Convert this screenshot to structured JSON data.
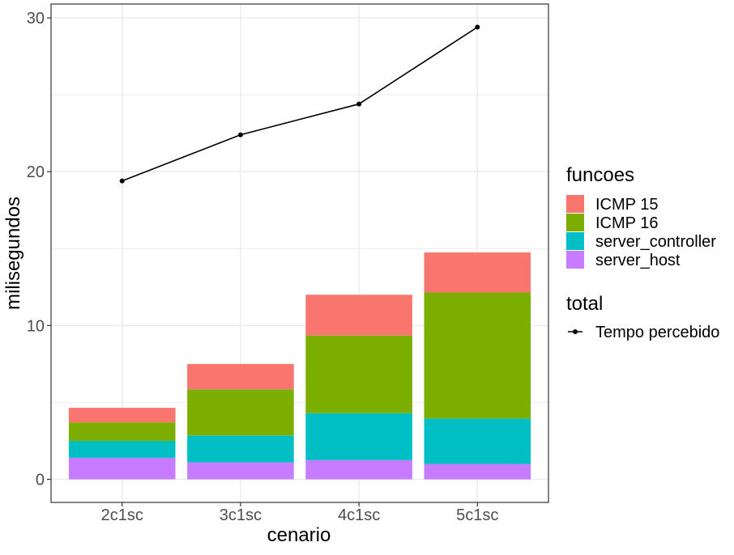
{
  "chart_data": {
    "type": "bar",
    "stacked": true,
    "categories": [
      "2c1sc",
      "3c1sc",
      "4c1sc",
      "5c1sc"
    ],
    "xlabel": "cenario",
    "ylabel": "milisegundos",
    "ylim": [
      -1.5,
      30.9
    ],
    "yticks": [
      0,
      10,
      20,
      30
    ],
    "grid": true,
    "legend_position": "right",
    "legends": [
      {
        "title": "funcoes",
        "entries": [
          "ICMP 15",
          "ICMP 16",
          "server_controller",
          "server_host"
        ]
      },
      {
        "title": "total",
        "entries": [
          "Tempo percebido"
        ]
      }
    ],
    "series": [
      {
        "name": "server_host",
        "kind": "bar",
        "color": "#C77CFF",
        "values": [
          1.4,
          1.1,
          1.25,
          1.0
        ]
      },
      {
        "name": "server_controller",
        "kind": "bar",
        "color": "#00BFC4",
        "values": [
          1.1,
          1.75,
          3.05,
          2.95
        ]
      },
      {
        "name": "ICMP 16",
        "kind": "bar",
        "color": "#7CAE00",
        "values": [
          1.2,
          3.0,
          5.05,
          8.2
        ]
      },
      {
        "name": "ICMP 15",
        "kind": "bar",
        "color": "#F8766D",
        "values": [
          0.95,
          1.65,
          2.65,
          2.6
        ]
      },
      {
        "name": "Tempo percebido",
        "kind": "line",
        "color": "#000000",
        "values": [
          19.4,
          22.4,
          24.4,
          29.4
        ]
      }
    ]
  }
}
